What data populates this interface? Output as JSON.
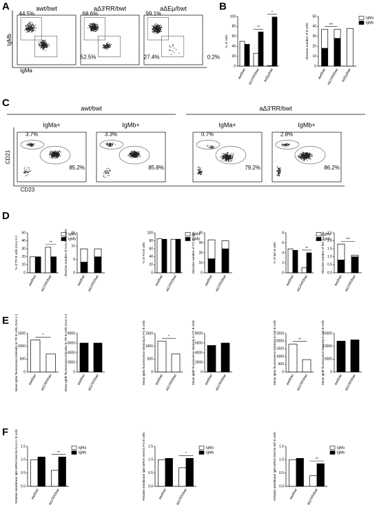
{
  "panels": {
    "letters": [
      "A",
      "B",
      "C",
      "D",
      "E",
      "F"
    ],
    "flow_a": {
      "x_label": "IgMa",
      "y_label": "IgMb",
      "plots": [
        {
          "title": "awt/bwt",
          "gate_1": "44.5%",
          "gate_2": "52.5%"
        },
        {
          "title": "aΔ3'RR/bwt",
          "gate_1": "68.6%",
          "gate_2": "27.4%"
        },
        {
          "title": "aΔEμ/bwt",
          "gate_1": "99.1%",
          "gate_2": "0.2%"
        }
      ]
    },
    "flow_c": {
      "x_label": "CD23",
      "y_label": "CD21",
      "groups": [
        "awt/bwt",
        "aΔ3'RR/bwt"
      ],
      "plots": [
        {
          "title": "IgMa+",
          "gate_1": "3.7%",
          "gate_2": "85.2%"
        },
        {
          "title": "IgMb+",
          "gate_1": "3.3%",
          "gate_2": "85.8%"
        },
        {
          "title": "IgMa+",
          "gate_1": "0.7%",
          "gate_2": "79.2%"
        },
        {
          "title": "IgMb+",
          "gate_1": "2.8%",
          "gate_2": "86.2%"
        }
      ]
    }
  },
  "chart_data": [
    {
      "type": "bar",
      "ylabel": "% of cells",
      "categories": [
        "awt/bwt",
        "aΔ3'RR/bwt",
        "aΔEμ/bwt"
      ],
      "series": [
        {
          "name": "IgMa",
          "color": "#ffffff",
          "values": [
            50,
            26,
            1
          ]
        },
        {
          "name": "IgMb",
          "color": "#000000",
          "values": [
            44,
            69,
            99
          ]
        }
      ],
      "ylim": [
        0,
        100
      ],
      "yticks": [
        0,
        20,
        40,
        60,
        80,
        100
      ],
      "significance": [
        null,
        "**",
        "*"
      ]
    },
    {
      "type": "stacked_bar",
      "ylabel": "Absolute number of B cells",
      "categories": [
        "awt/bwt",
        "aΔ3'RR/bwt",
        "aΔEμ/bwt"
      ],
      "series": [
        {
          "name": "IgMa",
          "color": "#ffffff",
          "values": [
            19,
            9,
            38
          ]
        },
        {
          "name": "IgMb",
          "color": "#000000",
          "values": [
            18,
            28,
            null
          ]
        }
      ],
      "ylim": [
        0,
        50
      ],
      "yticks": [
        0,
        10,
        20,
        30,
        40,
        50
      ],
      "significance": [
        "***",
        null,
        null
      ],
      "legend": true
    },
    {
      "type": "bar",
      "ylabel": "% of TR B cells (AA4.1+)",
      "categories": [
        "awt/bwt",
        "aΔ3'RR/bwt"
      ],
      "series": [
        {
          "name": "IgMa",
          "color": "#ffffff",
          "values": [
            20,
            32
          ]
        },
        {
          "name": "IgMb",
          "color": "#000000",
          "values": [
            20,
            20
          ]
        }
      ],
      "ylim": [
        0,
        50
      ],
      "yticks": [
        0,
        10,
        20,
        30,
        40,
        50
      ],
      "significance": [
        null,
        "**"
      ],
      "legend": true
    },
    {
      "type": "stacked_bar",
      "ylabel": "Absolute number of AA4.1+ B cells",
      "categories": [
        "awt/bwt",
        "aΔ3'RR/bwt"
      ],
      "series": [
        {
          "name": "IgMa",
          "color": "#ffffff",
          "values": [
            5,
            3
          ]
        },
        {
          "name": "IgMb",
          "color": "#000000",
          "values": [
            4,
            6
          ]
        }
      ],
      "ylim": [
        0,
        15
      ],
      "yticks": [
        0,
        5,
        10,
        15
      ]
    },
    {
      "type": "bar",
      "ylabel": "% of FO B cells",
      "categories": [
        "awt/bwt",
        "aΔ3'RR/bwt"
      ],
      "series": [
        {
          "name": "IgMa",
          "color": "#ffffff",
          "values": [
            85,
            84
          ]
        },
        {
          "name": "IgMb",
          "color": "#000000",
          "values": [
            84,
            84
          ]
        }
      ],
      "ylim": [
        0,
        100
      ],
      "yticks": [
        0,
        20,
        40,
        60,
        80,
        100
      ],
      "legend": true
    },
    {
      "type": "stacked_bar",
      "ylabel": "Absolute number of FO B cells",
      "categories": [
        "awt/bwt",
        "aΔ3'RR/bwt"
      ],
      "series": [
        {
          "name": "IgMa",
          "color": "#ffffff",
          "values": [
            19,
            8
          ]
        },
        {
          "name": "IgMb",
          "color": "#000000",
          "values": [
            14,
            24
          ]
        }
      ],
      "ylim": [
        0,
        40
      ],
      "yticks": [
        0,
        10,
        20,
        30,
        40
      ]
    },
    {
      "type": "bar",
      "ylabel": "% of MZ B cells",
      "categories": [
        "awt/bwt",
        "aΔ3'RR/bwt"
      ],
      "series": [
        {
          "name": "IgMa",
          "color": "#ffffff",
          "values": [
            4.8,
            1
          ]
        },
        {
          "name": "IgMb",
          "color": "#000000",
          "values": [
            4.5,
            4
          ]
        }
      ],
      "ylim": [
        0,
        8
      ],
      "yticks": [
        0,
        2,
        4,
        6,
        8
      ],
      "significance": [
        null,
        "**"
      ],
      "legend": true
    },
    {
      "type": "stacked_bar",
      "ylabel": "Absolute number of MZ B cells",
      "categories": [
        "awt/bwt",
        "aΔ3'RR/bwt"
      ],
      "series": [
        {
          "name": "IgMa",
          "color": "#ffffff",
          "values": [
            1,
            0.1
          ]
        },
        {
          "name": "IgMb",
          "color": "#000000",
          "values": [
            0.8,
            1
          ]
        }
      ],
      "ylim": [
        0,
        2.5
      ],
      "yticks": [
        {
          "value": 0,
          "label": "0.0"
        },
        0.5,
        {
          "value": 1,
          "label": "1.0"
        },
        1.5,
        {
          "value": 2,
          "label": "2.0"
        },
        2.5
      ],
      "significance": [
        "***",
        null
      ]
    },
    {
      "type": "bar",
      "ylabel": "Mean IgMa fluorescence intensity in TR B cells (AA4.1+)",
      "categories": [
        "awt/bwt",
        "aΔ3'RR/bwt"
      ],
      "values": [
        1250,
        700
      ],
      "color": "#ffffff",
      "ylim": [
        0,
        1500
      ],
      "yticks": [
        0,
        500,
        1000,
        1500
      ],
      "significance": [
        "*",
        null
      ]
    },
    {
      "type": "bar",
      "ylabel": "Mean IgMb fluorescence intensity in TR B cells (AA4.1+)",
      "categories": [
        "awt/bwt",
        "aΔ3'RR/bwt"
      ],
      "values": [
        6000,
        6000
      ],
      "color": "#000000",
      "ylim": [
        0,
        8000
      ],
      "yticks": [
        0,
        2000,
        4000,
        6000,
        8000
      ]
    },
    {
      "type": "bar",
      "ylabel": "Mean IgMa fluorescence intensity in FO B cells",
      "categories": [
        "awt/bwt",
        "aΔ3'RR/bwt"
      ],
      "values": [
        1200,
        700
      ],
      "color": "#ffffff",
      "ylim": [
        0,
        1500
      ],
      "yticks": [
        0,
        500,
        1000,
        1500
      ],
      "significance": [
        "*",
        null
      ]
    },
    {
      "type": "bar",
      "ylabel": "Mean IgMb fluorescence intensity in FO B cells",
      "categories": [
        "awt/bwt",
        "aΔ3'RR/bwt"
      ],
      "values": [
        5500,
        6000
      ],
      "color": "#000000",
      "ylim": [
        0,
        8000
      ],
      "yticks": [
        0,
        2000,
        4000,
        6000,
        8000
      ]
    },
    {
      "type": "bar",
      "ylabel": "Mean IgMa fluorescence intensity in MZ B cells",
      "categories": [
        "awt/bwt",
        "aΔ3'RR/bwt"
      ],
      "values": [
        1800,
        800
      ],
      "color": "#ffffff",
      "ylim": [
        0,
        2500
      ],
      "yticks": [
        0,
        500,
        1000,
        1500,
        2000,
        2500
      ],
      "significance": [
        "**",
        null
      ]
    },
    {
      "type": "bar",
      "ylabel": "Mean IgMb fluorescence intensity in MZ B cells",
      "categories": [
        "awt/bwt",
        "aΔ3'RR/bwt"
      ],
      "values": [
        12000,
        12500
      ],
      "color": "#000000",
      "ylim": [
        0,
        15000
      ],
      "yticks": [
        0,
        5000,
        10000,
        15000
      ]
    },
    {
      "type": "bar",
      "ylabel": "Relative membrane IgM mRNA level in AA4.1+ B cells",
      "categories": [
        "awt/bwt",
        "aΔ3'RR/bwt"
      ],
      "series": [
        {
          "name": "IgMa",
          "color": "#ffffff",
          "values": [
            1,
            0.6
          ]
        },
        {
          "name": "IgMb",
          "color": "#000000",
          "values": [
            1.1,
            1.1
          ]
        }
      ],
      "ylim": [
        0,
        1.5
      ],
      "yticks": [
        {
          "value": 0,
          "label": "0.0"
        },
        0.5,
        {
          "value": 1,
          "label": "1.0"
        },
        1.5
      ],
      "significance": [
        null,
        "**"
      ],
      "legend": true
    },
    {
      "type": "bar",
      "ylabel": "Relative membrane IgM mRNA level in FO B cells",
      "categories": [
        "awt/bwt",
        "aΔ3'RR/bwt"
      ],
      "series": [
        {
          "name": "IgMa",
          "color": "#ffffff",
          "values": [
            1,
            0.7
          ]
        },
        {
          "name": "IgMb",
          "color": "#000000",
          "values": [
            1.05,
            1.05
          ]
        }
      ],
      "ylim": [
        0,
        1.5
      ],
      "yticks": [
        {
          "value": 0,
          "label": "0.0"
        },
        0.5,
        {
          "value": 1,
          "label": "1.0"
        },
        1.5
      ],
      "significance": [
        null,
        "*"
      ],
      "legend": true
    },
    {
      "type": "bar",
      "ylabel": "Relative membrane IgM mRNA level in MZ B cells",
      "categories": [
        "awt/bwt",
        "aΔ3'RR/bwt"
      ],
      "series": [
        {
          "name": "IgMa",
          "color": "#ffffff",
          "values": [
            1,
            0.4
          ]
        },
        {
          "name": "IgMb",
          "color": "#000000",
          "values": [
            1.05,
            0.85
          ]
        }
      ],
      "ylim": [
        0,
        1.5
      ],
      "yticks": [
        {
          "value": 0,
          "label": "0.0"
        },
        0.5,
        {
          "value": 1,
          "label": "1.0"
        },
        1.5
      ],
      "significance": [
        null,
        "**"
      ],
      "legend": true
    }
  ]
}
